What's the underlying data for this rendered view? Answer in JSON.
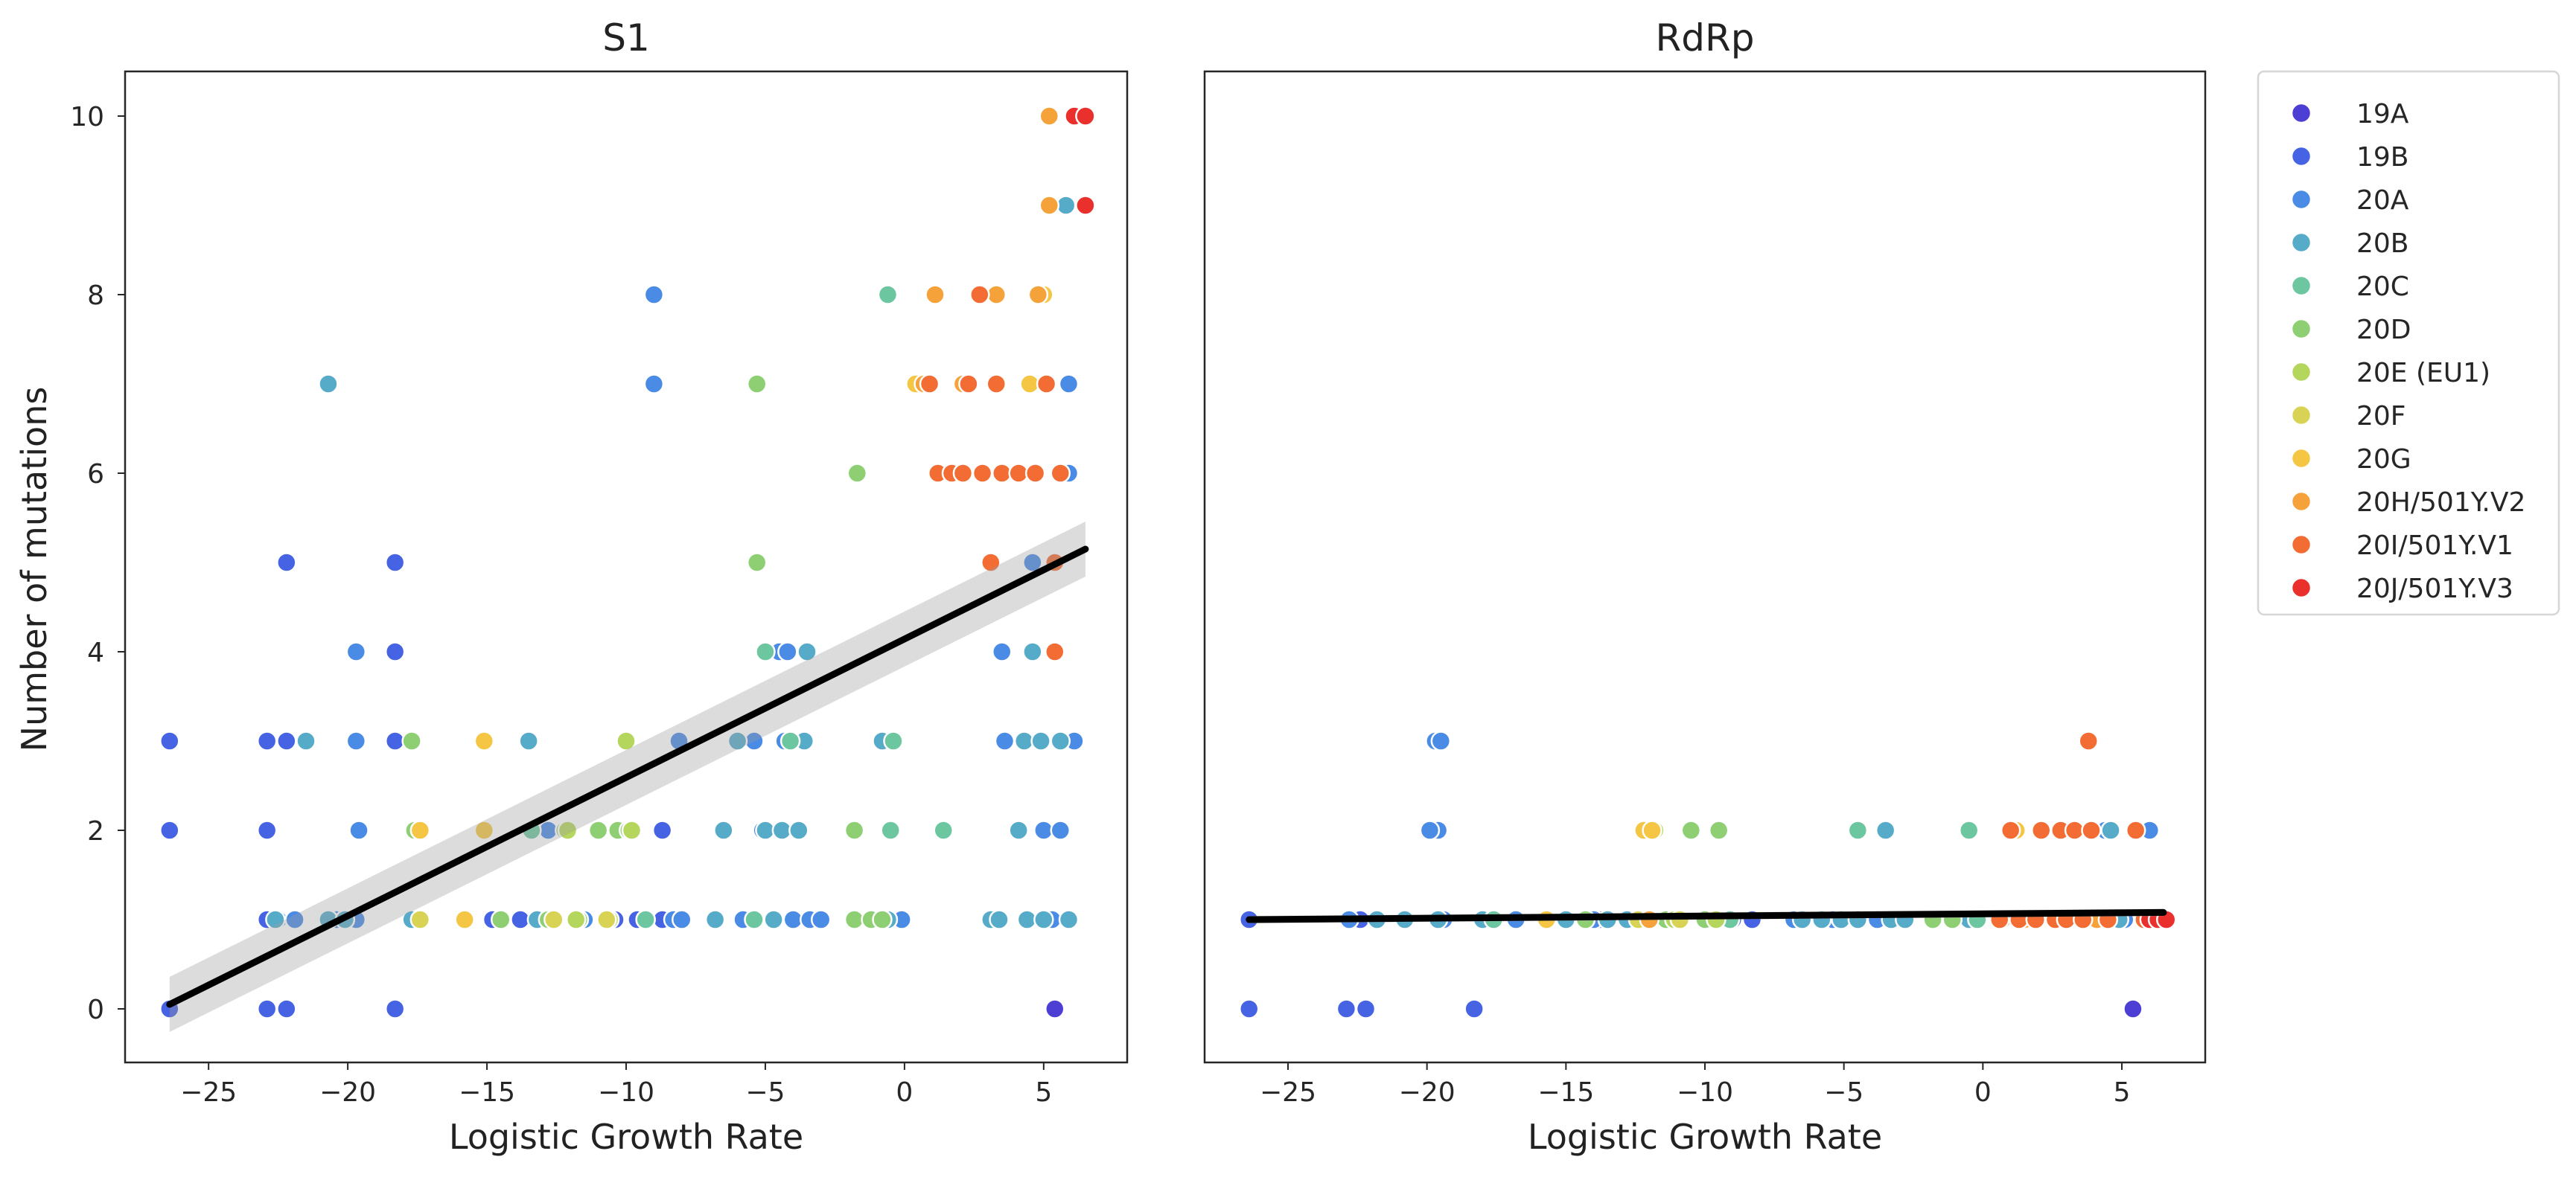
{
  "chart_data": [
    {
      "type": "scatter",
      "title": "S1",
      "xlabel": "Logistic Growth Rate",
      "ylabel": "Number of mutations",
      "xlim": [
        -28,
        8
      ],
      "ylim": [
        -0.6,
        10.5
      ],
      "xticks": [
        -25,
        -20,
        -15,
        -10,
        -5,
        0,
        5
      ],
      "xtick_labels": [
        "−25",
        "−20",
        "−15",
        "−10",
        "−5",
        "0",
        "5"
      ],
      "yticks": [
        0,
        2,
        4,
        6,
        8,
        10
      ],
      "ytick_labels": [
        "0",
        "2",
        "4",
        "6",
        "8",
        "10"
      ],
      "grid": false,
      "regression": {
        "x0": -26.4,
        "y0": 0.05,
        "x1": 6.5,
        "y1": 5.15,
        "ci_halfwidth": 0.22
      },
      "series": [
        {
          "name": "19A",
          "points": [
            [
              5.4,
              0
            ]
          ]
        },
        {
          "name": "19B",
          "points": [
            [
              -26.4,
              0
            ],
            [
              -26.4,
              2
            ],
            [
              -26.4,
              3
            ],
            [
              -22.9,
              0
            ],
            [
              -22.9,
              1
            ],
            [
              -22.9,
              2
            ],
            [
              -22.9,
              3
            ],
            [
              -22.2,
              0
            ],
            [
              -22.2,
              3
            ],
            [
              -22.2,
              5
            ],
            [
              -18.3,
              0
            ],
            [
              -18.3,
              3
            ],
            [
              -18.3,
              4
            ],
            [
              -18.3,
              5
            ],
            [
              -14.8,
              1
            ],
            [
              -13.8,
              1
            ],
            [
              -10.4,
              1
            ],
            [
              -9.6,
              1
            ],
            [
              -8.7,
              1
            ],
            [
              -8.7,
              2
            ]
          ]
        },
        {
          "name": "20A",
          "points": [
            [
              -22.5,
              1
            ],
            [
              -21.9,
              1
            ],
            [
              -20.4,
              1
            ],
            [
              -19.7,
              1
            ],
            [
              -19.6,
              2
            ],
            [
              -19.7,
              3
            ],
            [
              -19.7,
              4
            ],
            [
              -12.8,
              2
            ],
            [
              -11.5,
              1
            ],
            [
              -9.3,
              1
            ],
            [
              -9.0,
              7
            ],
            [
              -9.0,
              8
            ],
            [
              -8.3,
              1
            ],
            [
              -8.1,
              3
            ],
            [
              -8.0,
              1
            ],
            [
              -5.8,
              1
            ],
            [
              -5.4,
              3
            ],
            [
              -5.1,
              2
            ],
            [
              -4.5,
              4
            ],
            [
              -4.3,
              3
            ],
            [
              -4.2,
              4
            ],
            [
              -4.0,
              1
            ],
            [
              -3.4,
              1
            ],
            [
              -3.0,
              1
            ],
            [
              -0.1,
              1
            ],
            [
              3.5,
              4
            ],
            [
              3.6,
              3
            ],
            [
              4.6,
              5
            ],
            [
              5.0,
              2
            ],
            [
              5.3,
              1
            ],
            [
              5.6,
              2
            ],
            [
              5.9,
              7
            ],
            [
              5.9,
              6
            ],
            [
              6.1,
              3
            ]
          ]
        },
        {
          "name": "20B",
          "points": [
            [
              -22.6,
              1
            ],
            [
              -21.5,
              3
            ],
            [
              -20.7,
              7
            ],
            [
              -20.7,
              1
            ],
            [
              -20.1,
              1
            ],
            [
              -17.7,
              1
            ],
            [
              -13.5,
              3
            ],
            [
              -13.2,
              1
            ],
            [
              -6.8,
              1
            ],
            [
              -6.5,
              2
            ],
            [
              -6.0,
              3
            ],
            [
              -5.4,
              1
            ],
            [
              -5.0,
              2
            ],
            [
              -4.7,
              1
            ],
            [
              -4.4,
              2
            ],
            [
              -3.8,
              2
            ],
            [
              -3.6,
              3
            ],
            [
              -3.5,
              4
            ],
            [
              -0.8,
              3
            ],
            [
              -0.6,
              1
            ],
            [
              3.1,
              1
            ],
            [
              3.4,
              1
            ],
            [
              4.1,
              2
            ],
            [
              4.3,
              3
            ],
            [
              4.4,
              1
            ],
            [
              4.6,
              4
            ],
            [
              4.9,
              3
            ],
            [
              5.0,
              1
            ],
            [
              5.6,
              3
            ],
            [
              5.8,
              9
            ],
            [
              5.9,
              1
            ]
          ]
        },
        {
          "name": "20C",
          "points": [
            [
              -13.4,
              2
            ],
            [
              -9.3,
              1
            ],
            [
              -5.4,
              1
            ],
            [
              -5.0,
              4
            ],
            [
              -4.1,
              3
            ],
            [
              -0.6,
              8
            ],
            [
              -0.5,
              2
            ],
            [
              -0.4,
              3
            ],
            [
              1.4,
              2
            ]
          ]
        },
        {
          "name": "20D",
          "points": [
            [
              -17.6,
              2
            ],
            [
              -17.7,
              3
            ],
            [
              -14.5,
              1
            ],
            [
              -12.8,
              1
            ],
            [
              -12.2,
              2
            ],
            [
              -11.7,
              1
            ],
            [
              -11.0,
              2
            ],
            [
              -10.3,
              2
            ],
            [
              -9.9,
              2
            ],
            [
              -5.3,
              7
            ],
            [
              -5.3,
              5
            ],
            [
              -1.8,
              1
            ],
            [
              -1.8,
              2
            ],
            [
              -1.7,
              6
            ],
            [
              -1.2,
              1
            ],
            [
              -0.8,
              1
            ]
          ]
        },
        {
          "name": "20E (EU1)",
          "points": [
            [
              -12.1,
              2
            ],
            [
              -11.8,
              1
            ],
            [
              -10.6,
              1
            ],
            [
              -10.0,
              3
            ],
            [
              -9.8,
              2
            ]
          ]
        },
        {
          "name": "20F",
          "points": [
            [
              -17.4,
              1
            ],
            [
              -12.6,
              1
            ],
            [
              -10.7,
              1
            ]
          ]
        },
        {
          "name": "20G",
          "points": [
            [
              -17.4,
              2
            ],
            [
              -15.8,
              1
            ],
            [
              -15.1,
              2
            ],
            [
              -15.1,
              3
            ],
            [
              0.4,
              7
            ],
            [
              4.5,
              7
            ],
            [
              5.0,
              8
            ]
          ]
        },
        {
          "name": "20H/501Y.V2",
          "points": [
            [
              0.7,
              7
            ],
            [
              1.1,
              8
            ],
            [
              2.1,
              7
            ],
            [
              3.3,
              8
            ],
            [
              3.6,
              6
            ],
            [
              4.8,
              8
            ],
            [
              5.2,
              9
            ],
            [
              5.2,
              10
            ]
          ]
        },
        {
          "name": "20I/501Y.V1",
          "points": [
            [
              0.9,
              7
            ],
            [
              1.2,
              6
            ],
            [
              1.7,
              6
            ],
            [
              2.1,
              6
            ],
            [
              2.3,
              7
            ],
            [
              2.7,
              8
            ],
            [
              2.8,
              6
            ],
            [
              3.1,
              5
            ],
            [
              3.3,
              7
            ],
            [
              3.5,
              6
            ],
            [
              4.1,
              6
            ],
            [
              4.7,
              6
            ],
            [
              5.1,
              7
            ],
            [
              5.4,
              5
            ],
            [
              5.4,
              4
            ],
            [
              5.6,
              6
            ]
          ]
        },
        {
          "name": "20J/501Y.V3",
          "points": [
            [
              6.1,
              10
            ],
            [
              6.5,
              10
            ],
            [
              6.5,
              9
            ]
          ]
        }
      ]
    },
    {
      "type": "scatter",
      "title": "RdRp",
      "xlabel": "Logistic Growth Rate",
      "ylabel": "",
      "xlim": [
        -28,
        8
      ],
      "ylim": [
        -0.6,
        10.5
      ],
      "xticks": [
        -25,
        -20,
        -15,
        -10,
        -5,
        0,
        5
      ],
      "xtick_labels": [
        "−25",
        "−20",
        "−15",
        "−10",
        "−5",
        "0",
        "5"
      ],
      "yticks": [],
      "grid": false,
      "regression": {
        "x0": -26.4,
        "y0": 1.0,
        "x1": 6.5,
        "y1": 1.08,
        "ci_halfwidth": 0.03
      },
      "series": [
        {
          "name": "19A",
          "points": [
            [
              5.4,
              0
            ]
          ]
        },
        {
          "name": "19B",
          "points": [
            [
              -26.4,
              0
            ],
            [
              -26.4,
              1
            ],
            [
              -22.9,
              0
            ],
            [
              -22.2,
              0
            ],
            [
              -22.4,
              1
            ],
            [
              -18.3,
              0
            ],
            [
              -13.8,
              1
            ],
            [
              -9.0,
              1
            ],
            [
              -8.3,
              1
            ]
          ]
        },
        {
          "name": "20A",
          "points": [
            [
              -22.8,
              1
            ],
            [
              -19.7,
              3
            ],
            [
              -19.6,
              2
            ],
            [
              -19.9,
              2
            ],
            [
              -19.5,
              3
            ],
            [
              -19.4,
              1
            ],
            [
              -16.8,
              1
            ],
            [
              -14.0,
              1
            ],
            [
              -6.8,
              1
            ],
            [
              -5.4,
              1
            ],
            [
              -3.8,
              1
            ],
            [
              -2.9,
              1
            ],
            [
              4.4,
              2
            ],
            [
              5.1,
              1
            ],
            [
              6.0,
              2
            ]
          ]
        },
        {
          "name": "20B",
          "points": [
            [
              -21.8,
              1
            ],
            [
              -20.8,
              1
            ],
            [
              -19.6,
              1
            ],
            [
              -18.0,
              1
            ],
            [
              -15.0,
              1
            ],
            [
              -13.5,
              1
            ],
            [
              -12.8,
              1
            ],
            [
              -6.5,
              1
            ],
            [
              -5.8,
              1
            ],
            [
              -5.1,
              1
            ],
            [
              -4.5,
              1
            ],
            [
              -3.5,
              2
            ],
            [
              -3.3,
              1
            ],
            [
              -2.8,
              1
            ],
            [
              -0.5,
              1
            ],
            [
              4.6,
              2
            ],
            [
              4.9,
              1
            ]
          ]
        },
        {
          "name": "20C",
          "points": [
            [
              -17.6,
              1
            ],
            [
              -9.1,
              1
            ],
            [
              -4.5,
              2
            ],
            [
              -0.5,
              2
            ],
            [
              -0.2,
              1
            ]
          ]
        },
        {
          "name": "20D",
          "points": [
            [
              -14.3,
              1
            ],
            [
              -11.4,
              1
            ],
            [
              -10.5,
              2
            ],
            [
              -10.0,
              1
            ],
            [
              -9.5,
              2
            ],
            [
              -1.8,
              1
            ],
            [
              -1.1,
              1
            ]
          ]
        },
        {
          "name": "20E (EU1)",
          "points": [
            [
              -11.8,
              2
            ],
            [
              -11.1,
              1
            ],
            [
              -9.6,
              1
            ]
          ]
        },
        {
          "name": "20F",
          "points": [
            [
              -12.4,
              1
            ],
            [
              -10.9,
              1
            ]
          ]
        },
        {
          "name": "20G",
          "points": [
            [
              -15.7,
              1
            ],
            [
              -12.2,
              2
            ],
            [
              -11.9,
              2
            ],
            [
              1.2,
              2
            ]
          ]
        },
        {
          "name": "20H/501Y.V2",
          "points": [
            [
              -12.0,
              1
            ],
            [
              0.7,
              1
            ],
            [
              1.5,
              1
            ],
            [
              3.2,
              2
            ],
            [
              4.1,
              1
            ]
          ]
        },
        {
          "name": "20I/501Y.V1",
          "points": [
            [
              0.6,
              1
            ],
            [
              1.0,
              2
            ],
            [
              1.3,
              1
            ],
            [
              1.9,
              1
            ],
            [
              2.1,
              2
            ],
            [
              2.6,
              1
            ],
            [
              2.8,
              2
            ],
            [
              3.0,
              1
            ],
            [
              3.3,
              2
            ],
            [
              3.6,
              1
            ],
            [
              3.8,
              3
            ],
            [
              3.9,
              2
            ],
            [
              4.5,
              1
            ],
            [
              5.5,
              2
            ],
            [
              5.8,
              1
            ]
          ]
        },
        {
          "name": "20J/501Y.V3",
          "points": [
            [
              6.0,
              1
            ],
            [
              6.3,
              1
            ],
            [
              6.6,
              1
            ]
          ]
        }
      ]
    }
  ],
  "legend": {
    "placement": "right",
    "entries": [
      {
        "label": "19A",
        "color": "#4d3fd4"
      },
      {
        "label": "19B",
        "color": "#4563e3"
      },
      {
        "label": "20A",
        "color": "#4a8be6"
      },
      {
        "label": "20B",
        "color": "#56abc9"
      },
      {
        "label": "20C",
        "color": "#6cc6a0"
      },
      {
        "label": "20D",
        "color": "#8dcf72"
      },
      {
        "label": "20E (EU1)",
        "color": "#b5d65c"
      },
      {
        "label": "20F",
        "color": "#d8d354"
      },
      {
        "label": "20G",
        "color": "#f4c644"
      },
      {
        "label": "20H/501Y.V2",
        "color": "#f6a23a"
      },
      {
        "label": "20I/501Y.V1",
        "color": "#f26c34"
      },
      {
        "label": "20J/501Y.V3",
        "color": "#e9302c"
      }
    ]
  }
}
